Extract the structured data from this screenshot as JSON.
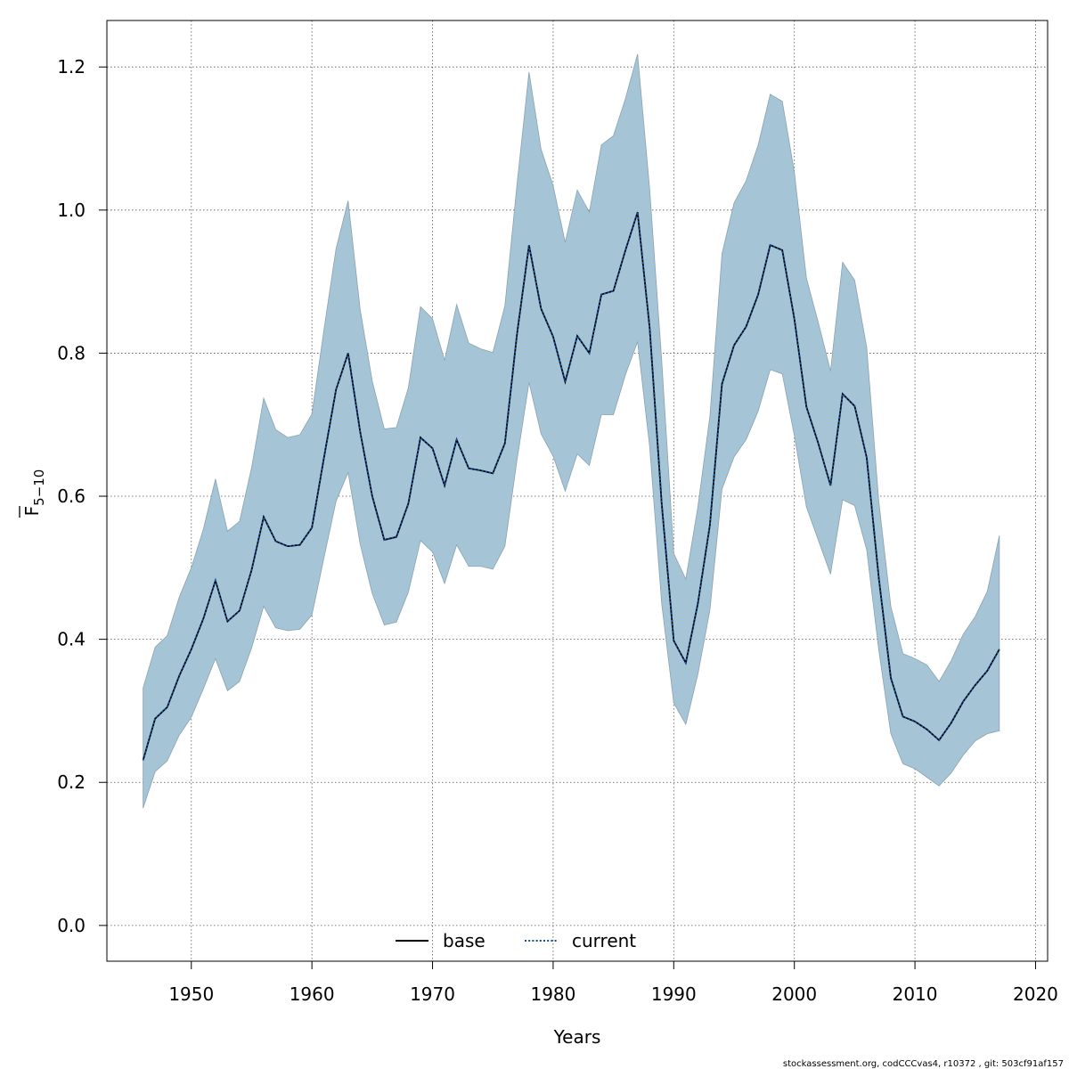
{
  "chart_data": {
    "type": "line",
    "xlabel": "Years",
    "ylabel": {
      "symbol": "F",
      "subscript": "5−10"
    },
    "xlim": [
      1943,
      2021
    ],
    "ylim": [
      -0.05,
      1.265
    ],
    "xticks": [
      "1950",
      "1960",
      "1970",
      "1980",
      "1990",
      "2000",
      "2010",
      "2020"
    ],
    "yticks": [
      "0.0",
      "0.2",
      "0.4",
      "0.6",
      "0.8",
      "1.0",
      "1.2"
    ],
    "grid": true,
    "legend_position": "bottom-center",
    "x": [
      1946,
      1947,
      1948,
      1949,
      1950,
      1951,
      1952,
      1953,
      1954,
      1955,
      1956,
      1957,
      1958,
      1959,
      1960,
      1961,
      1962,
      1963,
      1964,
      1965,
      1966,
      1967,
      1968,
      1969,
      1970,
      1971,
      1972,
      1973,
      1974,
      1975,
      1976,
      1977,
      1978,
      1979,
      1980,
      1981,
      1982,
      1983,
      1984,
      1985,
      1986,
      1987,
      1988,
      1989,
      1990,
      1991,
      1992,
      1993,
      1994,
      1995,
      1996,
      1997,
      1998,
      1999,
      2000,
      2001,
      2002,
      2003,
      2004,
      2005,
      2006,
      2007,
      2008,
      2009,
      2010,
      2011,
      2012,
      2013,
      2014,
      2015,
      2016,
      2017
    ],
    "series": [
      {
        "name": "base",
        "line_style": "solid",
        "color": "#000000",
        "values": [
          0.231,
          0.289,
          0.305,
          0.349,
          0.386,
          0.429,
          0.482,
          0.425,
          0.44,
          0.497,
          0.571,
          0.537,
          0.53,
          0.532,
          0.556,
          0.654,
          0.749,
          0.8,
          0.69,
          0.6,
          0.539,
          0.543,
          0.59,
          0.682,
          0.667,
          0.615,
          0.679,
          0.639,
          0.636,
          0.632,
          0.674,
          0.826,
          0.951,
          0.862,
          0.823,
          0.76,
          0.824,
          0.8,
          0.882,
          0.887,
          0.944,
          0.997,
          0.836,
          0.59,
          0.398,
          0.367,
          0.45,
          0.56,
          0.757,
          0.811,
          0.837,
          0.882,
          0.951,
          0.944,
          0.848,
          0.725,
          0.673,
          0.615,
          0.743,
          0.726,
          0.654,
          0.486,
          0.346,
          0.292,
          0.285,
          0.274,
          0.259,
          0.283,
          0.313,
          0.336,
          0.356,
          0.386
        ]
      },
      {
        "name": "current",
        "line_style": "dotted",
        "color": "#08519c",
        "values": [
          0.231,
          0.289,
          0.305,
          0.349,
          0.386,
          0.429,
          0.482,
          0.425,
          0.44,
          0.497,
          0.571,
          0.537,
          0.53,
          0.532,
          0.556,
          0.654,
          0.749,
          0.8,
          0.69,
          0.6,
          0.539,
          0.543,
          0.59,
          0.682,
          0.667,
          0.615,
          0.679,
          0.639,
          0.636,
          0.632,
          0.674,
          0.826,
          0.951,
          0.862,
          0.823,
          0.76,
          0.824,
          0.8,
          0.882,
          0.887,
          0.944,
          0.997,
          0.836,
          0.59,
          0.398,
          0.367,
          0.45,
          0.56,
          0.757,
          0.811,
          0.837,
          0.882,
          0.951,
          0.944,
          0.848,
          0.725,
          0.673,
          0.615,
          0.743,
          0.726,
          0.654,
          0.486,
          0.346,
          0.292,
          0.285,
          0.274,
          0.259,
          0.283,
          0.313,
          0.336,
          0.356,
          0.386
        ]
      }
    ],
    "confidence_band": {
      "color": "#a5c4d6",
      "upper": [
        0.332,
        0.389,
        0.405,
        0.459,
        0.5,
        0.554,
        0.624,
        0.551,
        0.565,
        0.64,
        0.737,
        0.693,
        0.682,
        0.686,
        0.715,
        0.833,
        0.946,
        1.013,
        0.861,
        0.761,
        0.694,
        0.696,
        0.752,
        0.865,
        0.848,
        0.79,
        0.868,
        0.814,
        0.806,
        0.801,
        0.866,
        1.035,
        1.193,
        1.085,
        1.034,
        0.955,
        1.028,
        0.997,
        1.091,
        1.104,
        1.156,
        1.218,
        1.03,
        0.79,
        0.52,
        0.484,
        0.585,
        0.712,
        0.939,
        1.01,
        1.041,
        1.091,
        1.162,
        1.152,
        1.053,
        0.905,
        0.842,
        0.775,
        0.927,
        0.902,
        0.808,
        0.593,
        0.446,
        0.38,
        0.373,
        0.364,
        0.341,
        0.37,
        0.407,
        0.432,
        0.467,
        0.545
      ],
      "lower": [
        0.164,
        0.215,
        0.23,
        0.266,
        0.291,
        0.331,
        0.373,
        0.328,
        0.341,
        0.388,
        0.446,
        0.416,
        0.412,
        0.414,
        0.434,
        0.514,
        0.593,
        0.633,
        0.533,
        0.464,
        0.42,
        0.424,
        0.466,
        0.538,
        0.522,
        0.478,
        0.532,
        0.502,
        0.502,
        0.498,
        0.53,
        0.65,
        0.759,
        0.687,
        0.656,
        0.607,
        0.659,
        0.643,
        0.714,
        0.714,
        0.77,
        0.816,
        0.67,
        0.45,
        0.311,
        0.281,
        0.351,
        0.441,
        0.61,
        0.655,
        0.679,
        0.719,
        0.777,
        0.771,
        0.685,
        0.585,
        0.538,
        0.491,
        0.595,
        0.587,
        0.525,
        0.385,
        0.268,
        0.226,
        0.219,
        0.207,
        0.195,
        0.213,
        0.238,
        0.258,
        0.268,
        0.272
      ]
    }
  },
  "footer": "stockassessment.org, codCCCvas4, r10372 , git: 503cf91af157"
}
